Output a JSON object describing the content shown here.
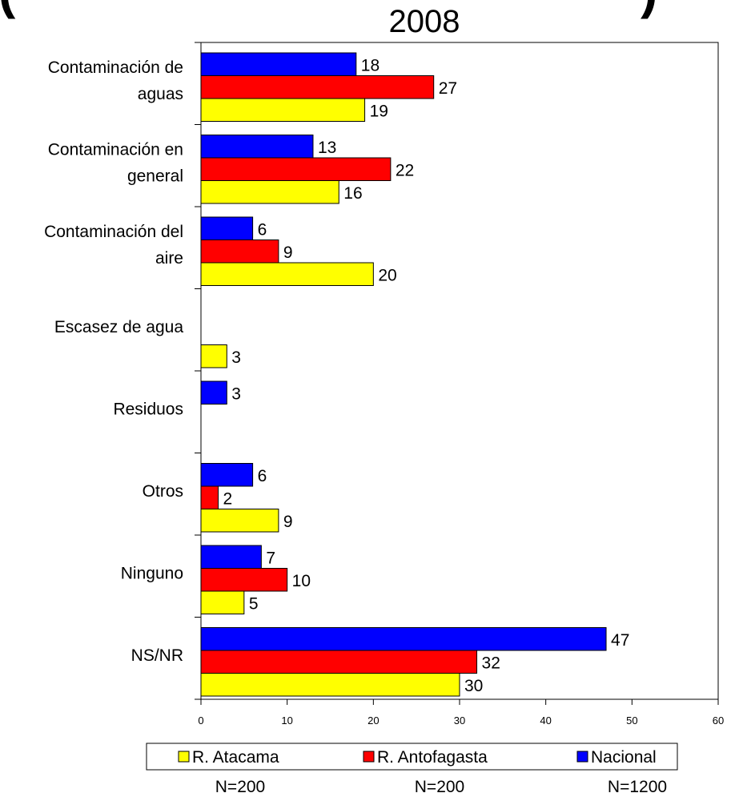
{
  "chart_data": {
    "type": "bar",
    "orientation": "horizontal",
    "title": "2008",
    "title_fragments": {
      "left": "(",
      "right": ")"
    },
    "categories": [
      [
        "Contaminación de",
        "aguas"
      ],
      [
        "Contaminación en",
        "general"
      ],
      [
        "Contaminación del",
        "aire"
      ],
      [
        "Escasez de agua"
      ],
      [
        "Residuos"
      ],
      [
        "Otros"
      ],
      [
        "Ninguno"
      ],
      [
        "NS/NR"
      ]
    ],
    "series": [
      {
        "name": "Nacional",
        "color": "#0000ff",
        "values": [
          18,
          13,
          6,
          null,
          3,
          6,
          7,
          47
        ]
      },
      {
        "name": "R. Antofagasta",
        "color": "#ff0000",
        "values": [
          27,
          22,
          9,
          null,
          null,
          2,
          10,
          32
        ]
      },
      {
        "name": "R. Atacama",
        "color": "#ffff00",
        "values": [
          19,
          16,
          20,
          3,
          null,
          9,
          5,
          30
        ]
      }
    ],
    "xlim": [
      0,
      60
    ],
    "xticks": [
      0,
      10,
      20,
      30,
      40,
      50,
      60
    ],
    "grid": false,
    "legend": {
      "position": "bottom",
      "entries": [
        {
          "name": "R. Atacama",
          "color": "#ffff00"
        },
        {
          "name": "R. Antofagasta",
          "color": "#ff0000"
        },
        {
          "name": "Nacional",
          "color": "#0000ff"
        }
      ]
    },
    "sample_sizes": [
      "N=200",
      "N=200",
      "N=1200"
    ]
  }
}
